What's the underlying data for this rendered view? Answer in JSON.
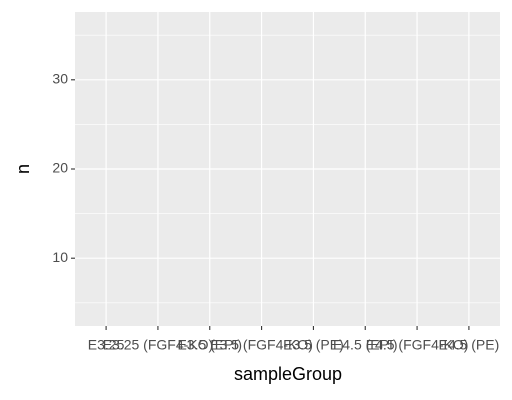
{
  "chart_data": {
    "type": "bar",
    "categories": [
      "E3.25",
      "E3.25 (FGF4-KO)",
      "E3.5 (EPI)",
      "E3.5 (FGF4-KO)",
      "E3.5 (PE)",
      "E4.5 (EPI)",
      "E4.5 (FGF4-KO)",
      "E4.5 (PE)"
    ],
    "x_label": "sampleGroup",
    "y_label": "n",
    "ylim": [
      2.4,
      37.6
    ],
    "yticks": [
      10,
      20,
      30
    ],
    "y_minor_ticks": [
      5,
      15,
      25,
      35
    ],
    "grid": true
  }
}
